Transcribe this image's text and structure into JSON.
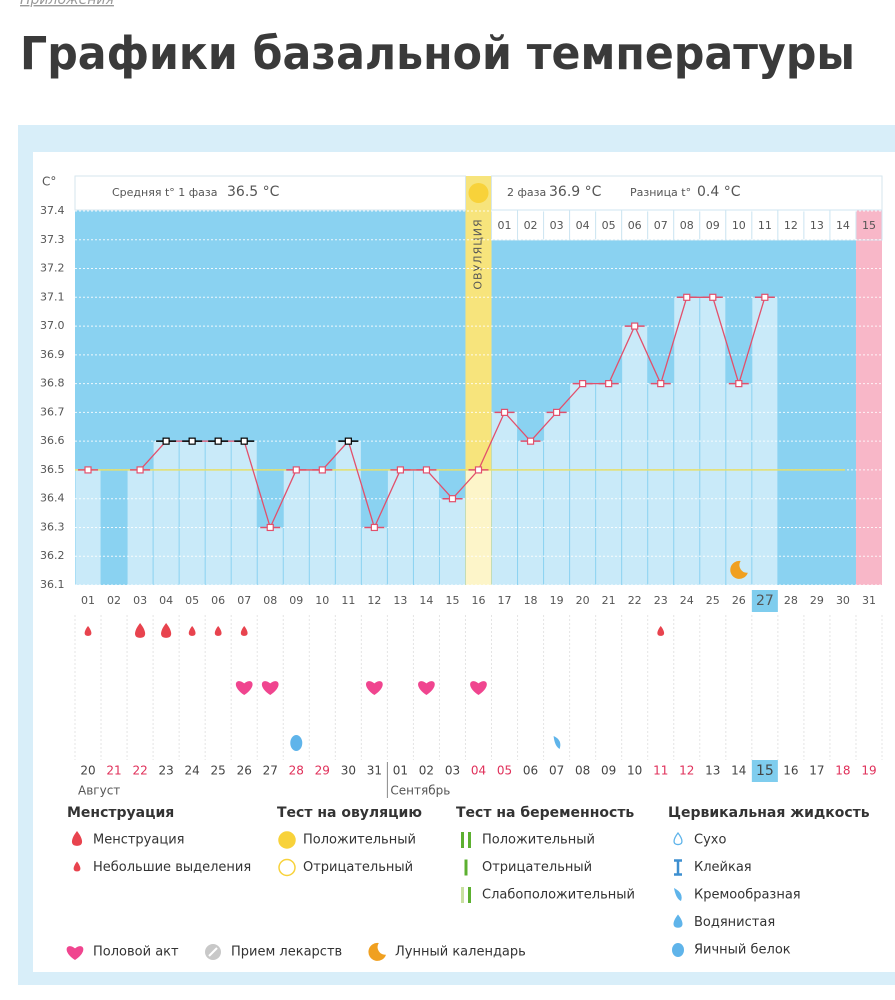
{
  "breadcrumb": "Приложения",
  "title": "Графики базальной температуры",
  "chart_data": {
    "type": "line",
    "y_unit": "C°",
    "ylim": [
      36.1,
      37.4
    ],
    "yticks": [
      36.1,
      36.2,
      36.3,
      36.4,
      36.5,
      36.6,
      36.7,
      36.8,
      36.9,
      {
        "value": 37,
        "label": "37.0"
      },
      37.1,
      37.2,
      37.3,
      37.4
    ],
    "grid": true,
    "color": "#e2506c",
    "categories": [
      "01",
      "02",
      "03",
      "04",
      "05",
      "06",
      "07",
      "08",
      "09",
      "10",
      "11",
      "12",
      "13",
      "14",
      "15",
      "16",
      "17",
      "18",
      "19",
      "20",
      "21",
      "22",
      "23",
      "24",
      "25",
      "26",
      "27",
      "28",
      "29",
      "30",
      "31"
    ],
    "values": [
      36.5,
      null,
      36.5,
      36.6,
      36.6,
      36.6,
      36.6,
      36.3,
      36.5,
      36.5,
      36.6,
      36.3,
      36.5,
      36.5,
      36.4,
      36.5,
      36.7,
      36.6,
      36.7,
      36.8,
      36.8,
      37.0,
      36.8,
      37.1,
      37.1,
      36.8,
      37.1,
      null,
      null,
      null,
      null
    ],
    "point_colors": [
      "#e2506c",
      null,
      "#e2506c",
      "#000000",
      "#000000",
      "#000000",
      "#000000",
      "#e2506c",
      "#e2506c",
      "#e2506c",
      "#000000",
      "#e2506c",
      "#e2506c",
      "#e2506c",
      "#e2506c",
      "#e2506c",
      "#e2506c",
      "#e2506c",
      "#e2506c",
      "#e2506c",
      "#e2506c",
      "#e2506c",
      "#e2506c",
      "#e2506c",
      "#e2506c",
      "#e2506c",
      "#e2506c",
      null,
      null,
      null,
      null
    ],
    "cover_line": 36.5,
    "cover_color": "#e6df6a",
    "phase1_label": "Средняя t° 1 фаза",
    "phase1_value": "36.5 °C",
    "phase2_label": "2 фаза",
    "phase2_value": "36.9 °C",
    "diff_label": "Разница t°",
    "diff_value": "0.4 °C",
    "ovulation_label": "ОВУЛЯЦИЯ",
    "ovulation_day": "16",
    "phase2_days": [
      "01",
      "02",
      "03",
      "04",
      "05",
      "06",
      "07",
      "08",
      "09",
      "10",
      "11",
      "12",
      "13",
      "14",
      "15"
    ],
    "highlight_day": "27",
    "dates": [
      "20",
      "21",
      "22",
      "23",
      "24",
      "25",
      "26",
      "27",
      "28",
      "29",
      "30",
      "31",
      "01",
      "02",
      "03",
      "04",
      "05",
      "06",
      "07",
      "08",
      "09",
      "10",
      "11",
      "12",
      "13",
      "14",
      "15",
      "16",
      "17",
      "18",
      "19"
    ],
    "date_colors": [
      "#444",
      "#e0305a",
      "#e0305a",
      "#444",
      "#444",
      "#444",
      "#444",
      "#444",
      "#e0305a",
      "#e0305a",
      "#444",
      "#444",
      "#444",
      "#444",
      "#444",
      "#e0305a",
      "#e0305a",
      "#444",
      "#444",
      "#444",
      "#444",
      "#444",
      "#e0305a",
      "#e0305a",
      "#444",
      "#444",
      "#444",
      "#444",
      "#444",
      "#e0305a",
      "#e0305a"
    ],
    "highlight_date": "15",
    "months": [
      "Август",
      "Сентябрь"
    ],
    "menstruation": [
      3,
      4
    ],
    "spotting": [
      1,
      5,
      6,
      7,
      23
    ],
    "intercourse": [
      7,
      8,
      12,
      14,
      16
    ],
    "egg_white": [
      9
    ],
    "creamy": [
      19
    ],
    "moon": [
      26
    ]
  },
  "legend": {
    "groups": [
      {
        "title": "Менструация",
        "items": [
          "Менструация",
          "Небольшие выделения"
        ]
      },
      {
        "title": "Тест на овуляцию",
        "items": [
          "Положительный",
          "Отрицательный"
        ]
      },
      {
        "title": "Тест на беременность",
        "items": [
          "Положительный",
          "Отрицательный",
          "Слабоположительный"
        ]
      },
      {
        "title": "Цервикальная жидкость",
        "items": [
          "Сухо",
          "Клейкая",
          "Кремообразная",
          "Водянистая",
          "Яичный белок"
        ]
      }
    ],
    "extra": [
      "Половой акт",
      "Прием лекарств",
      "Лунный календарь"
    ]
  }
}
